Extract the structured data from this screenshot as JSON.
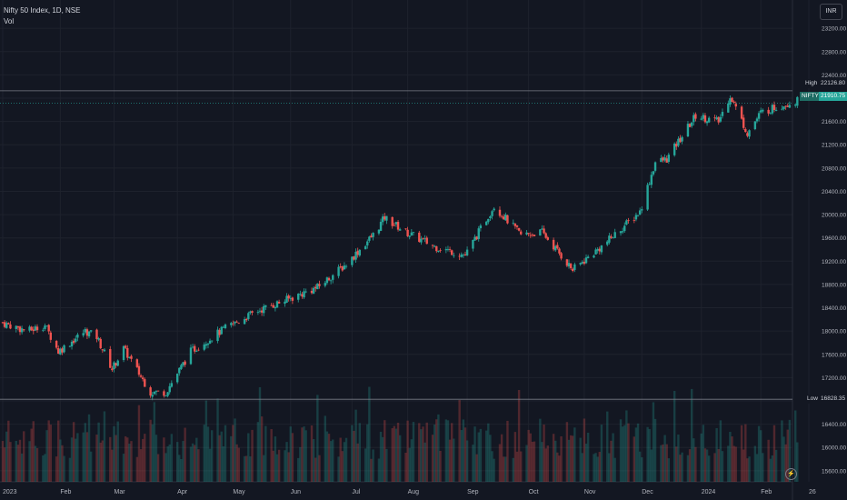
{
  "header": {
    "title": "Nifty 50 Index, 1D, NSE",
    "volume_label": "Vol",
    "currency": "INR"
  },
  "colors": {
    "background": "#131722",
    "up": "#26a69a",
    "down": "#ef5350",
    "grid": "#1e222d",
    "axis_text": "#b2b5be"
  },
  "markers": {
    "high_label": "High",
    "high_value": "22126.80",
    "symbol_label": "NIFTY",
    "last_value": "21910.75",
    "low_label": "Low",
    "low_value": "16828.35"
  },
  "chart_data": {
    "type": "candlestick",
    "title": "Nifty 50 Index, 1D, NSE",
    "ylim": [
      15400,
      23200
    ],
    "y_ticks": [
      "15600.00",
      "16000.00",
      "16400.00",
      "16800.00",
      "17200.00",
      "17600.00",
      "18000.00",
      "18400.00",
      "18800.00",
      "19200.00",
      "19600.00",
      "20000.00",
      "20400.00",
      "20800.00",
      "21200.00",
      "21600.00",
      "22000.00",
      "22400.00",
      "22800.00",
      "23200.00"
    ],
    "x_ticks": [
      "2023",
      "Feb",
      "Mar",
      "Apr",
      "May",
      "Jun",
      "Jul",
      "Aug",
      "Sep",
      "Oct",
      "Nov",
      "Dec",
      "2024",
      "Feb",
      "26"
    ],
    "grid": true,
    "high": 22126.8,
    "low": 16828.35,
    "last": 21910.75,
    "approx_path": [
      [
        "2023-01-01",
        18150
      ],
      [
        "2023-01-15",
        18000
      ],
      [
        "2023-01-24",
        18100
      ],
      [
        "2023-01-31",
        17650
      ],
      [
        "2023-02-14",
        18000
      ],
      [
        "2023-02-20",
        17900
      ],
      [
        "2023-02-28",
        17350
      ],
      [
        "2023-03-06",
        17700
      ],
      [
        "2023-03-20",
        16950
      ],
      [
        "2023-03-28",
        16950
      ],
      [
        "2023-04-10",
        17650
      ],
      [
        "2023-04-28",
        18050
      ],
      [
        "2023-05-15",
        18350
      ],
      [
        "2023-05-31",
        18550
      ],
      [
        "2023-06-15",
        18750
      ],
      [
        "2023-06-30",
        19150
      ],
      [
        "2023-07-14",
        19650
      ],
      [
        "2023-07-20",
        19950
      ],
      [
        "2023-07-31",
        19700
      ],
      [
        "2023-08-15",
        19450
      ],
      [
        "2023-08-31",
        19300
      ],
      [
        "2023-09-15",
        20150
      ],
      [
        "2023-09-29",
        19650
      ],
      [
        "2023-10-10",
        19700
      ],
      [
        "2023-10-26",
        19050
      ],
      [
        "2023-11-10",
        19450
      ],
      [
        "2023-11-30",
        20050
      ],
      [
        "2023-12-08",
        20900
      ],
      [
        "2023-12-14",
        20950
      ],
      [
        "2023-12-29",
        21700
      ],
      [
        "2024-01-10",
        21600
      ],
      [
        "2024-01-16",
        22050
      ],
      [
        "2024-01-25",
        21400
      ],
      [
        "2024-02-01",
        21750
      ],
      [
        "2024-02-09",
        21850
      ],
      [
        "2024-02-14",
        21900
      ],
      [
        "2024-02-20",
        21950
      ]
    ]
  }
}
